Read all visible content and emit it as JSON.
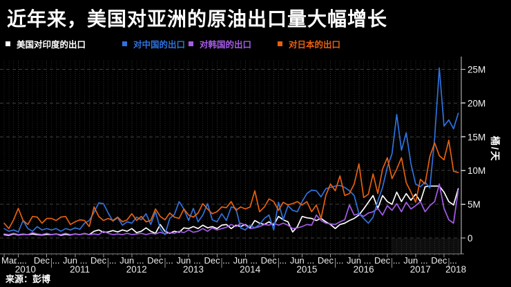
{
  "title": "近年来，美国对亚洲的原油出口量大幅增长",
  "source": "来源：彭博",
  "chart_data": {
    "type": "line",
    "title": "近年来，美国对亚洲的原油出口量大幅增长",
    "ylabel": "桶/天",
    "y_ticks": [
      "0",
      "5M",
      "10M",
      "15M",
      "20M",
      "25M"
    ],
    "y_tick_values": [
      0,
      5,
      10,
      15,
      20,
      25
    ],
    "ylim": [
      0,
      26.5
    ],
    "grid": true,
    "legend_position": "top",
    "x_start": "2010-03",
    "x_interval": "monthly",
    "x_tick_months": [
      0,
      3,
      9,
      15,
      21,
      27,
      33,
      39,
      45,
      51,
      57,
      63,
      69,
      75,
      81,
      87,
      93
    ],
    "x_tick_labels": [
      "Mar ...",
      "...",
      "Dec ...",
      "Jun ...",
      "Dec ...",
      "Jun ...",
      "Dec ...",
      "Jun ...",
      "Dec ...",
      "Jun ...",
      "Dec ...",
      "Jun ...",
      "Dec ...",
      "Jun ...",
      "Dec ...",
      "Jun ...",
      "Dec ..."
    ],
    "year_labels": [
      "2010",
      "2011",
      "2012",
      "2013",
      "2014",
      "2015",
      "2016",
      "2017",
      "2018"
    ],
    "year_boundary_months": [
      10,
      22,
      34,
      46,
      58,
      70,
      82,
      94
    ],
    "series": [
      {
        "name": "美国对印度的出口",
        "color": "#ffffff",
        "values": [
          0.5,
          0.4,
          0.6,
          0.45,
          0.55,
          0.5,
          0.6,
          0.5,
          0.45,
          0.55,
          0.5,
          0.6,
          0.4,
          0.55,
          0.45,
          0.6,
          0.5,
          0.65,
          0.5,
          1.0,
          1.2,
          0.85,
          0.9,
          1.1,
          0.9,
          1.2,
          1.0,
          1.4,
          0.8,
          1.0,
          1.5,
          1.0,
          0.7,
          2.0,
          1.0,
          0.7,
          1.0,
          0.85,
          1.5,
          1.4,
          1.7,
          1.4,
          1.9,
          1.5,
          1.7,
          1.4,
          1.9,
          2.0,
          1.4,
          1.9,
          1.7,
          2.0,
          1.5,
          2.6,
          2.2,
          2.0,
          2.4,
          1.9,
          3.2,
          2.7,
          2.4,
          0.9,
          1.7,
          3.2,
          3.0,
          2.9,
          2.6,
          2.9,
          2.4,
          2.0,
          1.4,
          2.0,
          2.2,
          2.6,
          2.9,
          3.4,
          4.3,
          5.3,
          6.3,
          4.4,
          6.3,
          5.4,
          5.0,
          6.8,
          5.4,
          6.6,
          5.6,
          6.5,
          5.4,
          7.6,
          7.7,
          7.7,
          7.7,
          6.8,
          5.4,
          4.9,
          7.3
        ]
      },
      {
        "name": "对中国的出口",
        "color": "#2f72dd",
        "values": [
          1.4,
          1.0,
          1.2,
          0.9,
          2.6,
          1.4,
          1.0,
          1.7,
          1.2,
          1.4,
          1.2,
          1.4,
          1.0,
          1.4,
          1.2,
          1.5,
          1.3,
          2.2,
          2.6,
          3.8,
          5.2,
          5.1,
          3.7,
          2.5,
          3.0,
          1.9,
          2.4,
          2.2,
          3.1,
          2.7,
          3.6,
          2.0,
          3.9,
          1.4,
          0.5,
          2.9,
          3.5,
          5.4,
          4.3,
          2.6,
          4.4,
          2.4,
          3.4,
          5.1,
          2.7,
          2.4,
          3.6,
          2.6,
          4.6,
          4.4,
          1.5,
          1.2,
          1.9,
          1.5,
          2.0,
          2.9,
          3.4,
          1.2,
          5.3,
          2.7,
          4.8,
          4.1,
          3.9,
          5.4,
          6.6,
          7.1,
          7.0,
          6.1,
          7.3,
          7.5,
          7.7,
          7.8,
          7.5,
          7.0,
          6.3,
          3.6,
          2.9,
          2.2,
          3.1,
          5.5,
          7.5,
          10.5,
          12.5,
          18.3,
          13.0,
          15.6,
          11.0,
          8.0,
          7.6,
          8.3,
          7.4,
          14.8,
          25.2,
          16.6,
          17.5,
          16.2,
          18.5
        ]
      },
      {
        "name": "对韩国的出口",
        "color": "#a55ce8",
        "values": [
          0.6,
          0.5,
          0.7,
          0.5,
          0.6,
          0.5,
          0.8,
          0.6,
          0.5,
          0.7,
          0.5,
          0.6,
          0.5,
          0.7,
          0.5,
          0.6,
          0.5,
          0.7,
          0.5,
          0.6,
          0.5,
          1.0,
          0.7,
          0.5,
          0.6,
          0.5,
          0.7,
          0.5,
          0.6,
          0.7,
          0.5,
          0.7,
          0.6,
          0.85,
          0.6,
          0.8,
          0.7,
          1.0,
          0.8,
          1.2,
          0.85,
          1.0,
          1.4,
          1.0,
          1.5,
          1.2,
          1.4,
          1.6,
          2.0,
          1.7,
          2.2,
          1.9,
          1.4,
          1.5,
          1.7,
          2.0,
          1.9,
          2.2,
          1.9,
          2.2,
          1.9,
          1.4,
          1.5,
          1.7,
          2.0,
          1.9,
          3.4,
          2.6,
          2.2,
          2.1,
          2.0,
          2.4,
          2.7,
          4.9,
          3.4,
          3.6,
          3.2,
          3.7,
          3.9,
          4.4,
          3.4,
          4.8,
          4.1,
          5.1,
          3.9,
          5.3,
          4.3,
          4.8,
          5.4,
          3.9,
          4.8,
          5.4,
          8.0,
          4.4,
          2.7,
          2.2,
          7.1
        ]
      },
      {
        "name": "对日本的出口",
        "color": "#e8600e",
        "values": [
          2.2,
          1.4,
          2.7,
          4.4,
          2.6,
          2.0,
          3.2,
          3.1,
          2.2,
          2.9,
          2.9,
          2.6,
          3.1,
          3.2,
          2.0,
          2.4,
          2.7,
          2.6,
          1.7,
          4.6,
          3.2,
          2.6,
          2.9,
          2.6,
          3.1,
          2.4,
          2.7,
          3.6,
          2.6,
          3.2,
          2.4,
          2.6,
          4.3,
          3.2,
          2.7,
          3.7,
          3.1,
          2.9,
          4.3,
          3.4,
          3.1,
          3.7,
          5.1,
          4.3,
          3.6,
          3.9,
          4.6,
          4.5,
          5.4,
          4.1,
          4.6,
          4.3,
          4.6,
          7.0,
          3.9,
          4.6,
          5.8,
          5.4,
          4.1,
          5.3,
          4.9,
          5.1,
          5.4,
          4.9,
          5.4,
          3.9,
          4.9,
          2.9,
          6.3,
          8.0,
          7.0,
          9.2,
          6.3,
          6.6,
          8.0,
          11.0,
          6.0,
          6.5,
          9.5,
          6.6,
          10.2,
          11.9,
          8.8,
          10.2,
          11.9,
          8.2,
          6.8,
          5.3,
          8.7,
          8.0,
          12.1,
          14.1,
          12.2,
          11.6,
          14.5,
          9.9,
          9.7
        ]
      }
    ]
  }
}
